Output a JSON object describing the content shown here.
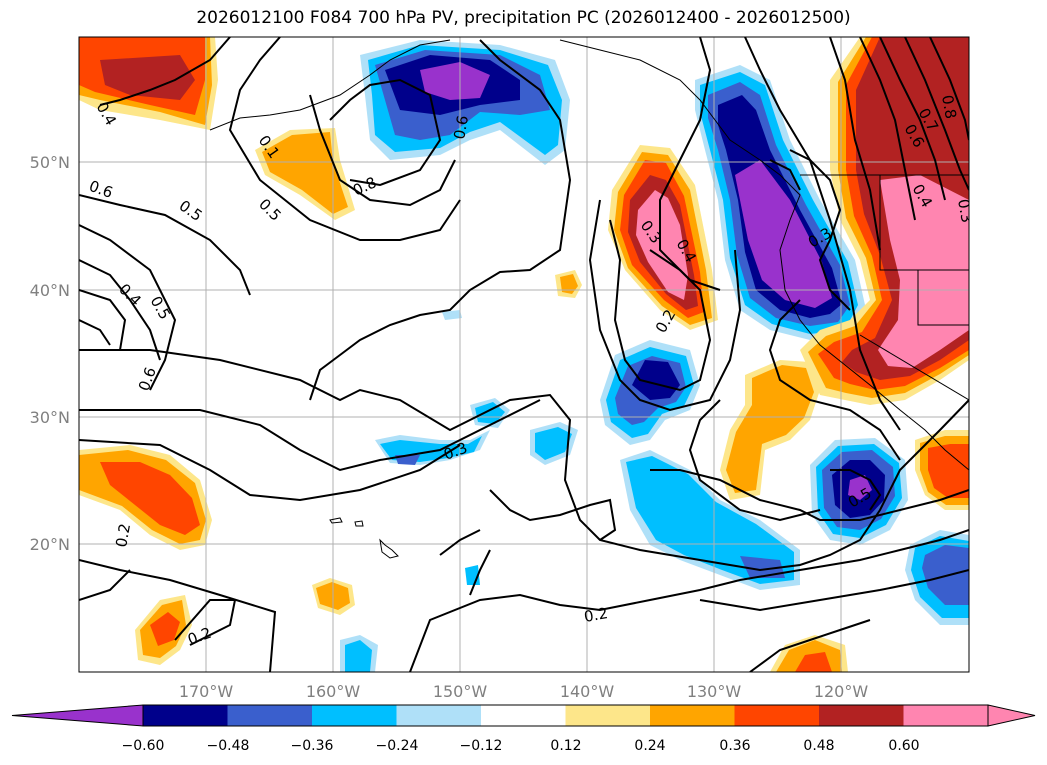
{
  "title": "2026012100 F084 700 hPa PV, precipitation PC (2026012400 - 2026012500)",
  "map": {
    "lat_labels": [
      "50°N",
      "40°N",
      "30°N",
      "20°N"
    ],
    "lon_labels": [
      "170°W",
      "160°W",
      "150°W",
      "140°W",
      "130°W",
      "120°W"
    ],
    "contour_labels": [
      "0.4",
      "0.6",
      "0.5",
      "0.5",
      "0.4",
      "0.5",
      "0.6",
      "0.2",
      "0.1",
      "0.8",
      "0.6",
      "0.3",
      "0.4",
      "0.2",
      "0.3",
      "0.3",
      "0.2",
      "0.2",
      "0.5",
      "0.7",
      "0.6",
      "0.4",
      "0.8",
      "0.3"
    ]
  },
  "colorbar": {
    "ticks": [
      "−0.60",
      "−0.48",
      "−0.36",
      "−0.24",
      "−0.12",
      "0.12",
      "0.24",
      "0.36",
      "0.48",
      "0.60"
    ],
    "colors": [
      "#9932cc",
      "#00008b",
      "#3a5fcd",
      "#00bfff",
      "#afe0f8",
      "#ffffff",
      "#fde68a",
      "#ffa500",
      "#ff4500",
      "#b22222",
      "#ff85b0",
      "#ff85b0"
    ]
  },
  "colors": {
    "purple": "#9932cc",
    "navy": "#00008b",
    "royal": "#3a5fcd",
    "sky": "#00bfff",
    "pale_blue": "#afe0f8",
    "pale_yellow": "#fde68a",
    "orange": "#ffa500",
    "red_orange": "#ff4500",
    "firebrick": "#b22222",
    "pink": "#ff85b0"
  }
}
